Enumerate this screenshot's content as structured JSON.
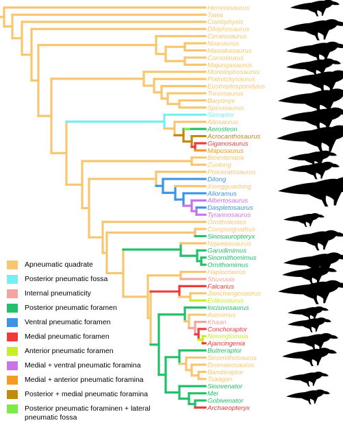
{
  "colors": {
    "apneumatic": "#F9C670",
    "posterior_fossa": "#74F0F0",
    "internal": "#F3A6A0",
    "posterior_foramen": "#22C06A",
    "ventral_foramen": "#3C94E6",
    "medial_foramen": "#EE3B3B",
    "anterior_foramen": "#C9EE24",
    "medial_ventral": "#C873E8",
    "medial_anterior": "#F59A22",
    "posterior_medial": "#C08A10",
    "posterior_lateral": "#7CEB4A",
    "silhouette": "#000000"
  },
  "taxa": [
    {
      "name": "Herrerasaurus",
      "state": "apneumatic"
    },
    {
      "name": "Tawa",
      "state": "apneumatic"
    },
    {
      "name": "Coelophysis",
      "state": "apneumatic"
    },
    {
      "name": "Dilophosaurus",
      "state": "apneumatic"
    },
    {
      "name": "Ceratosaurus",
      "state": "apneumatic"
    },
    {
      "name": "Noasaurus",
      "state": "apneumatic"
    },
    {
      "name": "Masiakasaurus",
      "state": "apneumatic"
    },
    {
      "name": "Carnotaurus",
      "state": "apneumatic"
    },
    {
      "name": "Majungasaurus",
      "state": "apneumatic"
    },
    {
      "name": "Monolophosaurus",
      "state": "apneumatic"
    },
    {
      "name": "Piatnitzkysaurus",
      "state": "apneumatic"
    },
    {
      "name": "Eustreptospondylus",
      "state": "apneumatic"
    },
    {
      "name": "Torvosaurus",
      "state": "apneumatic"
    },
    {
      "name": "Baryonyx",
      "state": "apneumatic"
    },
    {
      "name": "Spinosaurus",
      "state": "apneumatic"
    },
    {
      "name": "Sinraptor",
      "state": "posterior_fossa"
    },
    {
      "name": "Allosaurus",
      "state": "apneumatic"
    },
    {
      "name": "Aerosteon",
      "state": "posterior_foramen"
    },
    {
      "name": "Acrocanthosaurus",
      "state": "posterior_medial"
    },
    {
      "name": "Giganosaurus",
      "state": "medial_foramen"
    },
    {
      "name": "Mapusaurus",
      "state": "medial_anterior"
    },
    {
      "name": "Bicentenaria",
      "state": "apneumatic"
    },
    {
      "name": "Zuolong",
      "state": "apneumatic"
    },
    {
      "name": "Proceratosaurus",
      "state": "apneumatic"
    },
    {
      "name": "Dilong",
      "state": "ventral_foramen"
    },
    {
      "name": "Xiongguanlong",
      "state": "apneumatic"
    },
    {
      "name": "Alioramus",
      "state": "ventral_foramen"
    },
    {
      "name": "Albertosaurus",
      "state": "medial_ventral"
    },
    {
      "name": "Daspletosaurus",
      "state": "ventral_foramen"
    },
    {
      "name": "Tyrannosaurus",
      "state": "medial_ventral"
    },
    {
      "name": "Ornitholestes",
      "state": "apneumatic"
    },
    {
      "name": "Compsognathus",
      "state": "apneumatic"
    },
    {
      "name": "Sinosauropteryx",
      "state": "posterior_foramen"
    },
    {
      "name": "Nqwebasaurus",
      "state": "apneumatic"
    },
    {
      "name": "Garudimimus",
      "state": "posterior_foramen"
    },
    {
      "name": "Sinornithomimus",
      "state": "posterior_foramen"
    },
    {
      "name": "Ornithomimus",
      "state": "posterior_foramen"
    },
    {
      "name": "Haplocheirus",
      "state": "apneumatic"
    },
    {
      "name": "Shuvuuia",
      "state": "internal"
    },
    {
      "name": "Falcarius",
      "state": "medial_foramen"
    },
    {
      "name": "Jianchangosaurus",
      "state": "apneumatic"
    },
    {
      "name": "Erlikosaurus",
      "state": "anterior_foramen"
    },
    {
      "name": "Incisivosaurus",
      "state": "posterior_foramen"
    },
    {
      "name": "Avimimus",
      "state": "apneumatic"
    },
    {
      "name": "Khaan",
      "state": "internal"
    },
    {
      "name": "Conchoraptor",
      "state": "medial_foramen"
    },
    {
      "name": "Nemegtomaia",
      "state": "anterior_foramen"
    },
    {
      "name": "Ajancingenia",
      "state": "medial_foramen"
    },
    {
      "name": "Buitreraptor",
      "state": "posterior_foramen"
    },
    {
      "name": "Sinornithosaurus",
      "state": "apneumatic"
    },
    {
      "name": "Dromaeosaurus",
      "state": "apneumatic"
    },
    {
      "name": "Bambiraptor",
      "state": "apneumatic"
    },
    {
      "name": "Tsaagan",
      "state": "apneumatic"
    },
    {
      "name": "Sinovenator",
      "state": "posterior_foramen"
    },
    {
      "name": "Mei",
      "state": "posterior_foramen"
    },
    {
      "name": "Gobivenator",
      "state": "posterior_foramen"
    },
    {
      "name": "Archaeopteryx",
      "state": "medial_foramen"
    }
  ],
  "legend": [
    {
      "key": "apneumatic",
      "label": "Apneumatic quadrate"
    },
    {
      "key": "posterior_fossa",
      "label": "Posterior pneumatic fossa"
    },
    {
      "key": "internal",
      "label": "Internal pneumaticity"
    },
    {
      "key": "posterior_foramen",
      "label": "Posterior pneumatic foramen"
    },
    {
      "key": "ventral_foramen",
      "label": "Ventral pneumatic foramen"
    },
    {
      "key": "medial_foramen",
      "label": "Medial pneumatic foramen"
    },
    {
      "key": "anterior_foramen",
      "label": "Anterior pneumatic foramen"
    },
    {
      "key": "medial_ventral",
      "label": "Medial + ventral pneumatic foramina"
    },
    {
      "key": "medial_anterior",
      "label": "Medial + anterior pneumatic foramina"
    },
    {
      "key": "posterior_medial",
      "label": "Posterior + medial pneumatic foramina"
    },
    {
      "key": "posterior_lateral",
      "label": "Posterior pneumatic foraminen + lateral pneumatic fossa"
    }
  ]
}
